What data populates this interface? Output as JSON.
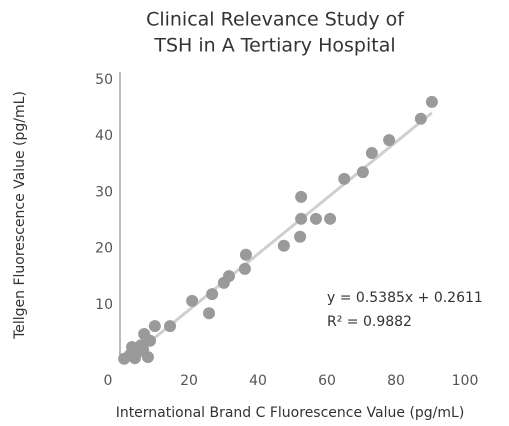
{
  "chart_data": {
    "type": "scatter",
    "title": [
      "Clinical Relevance Study of",
      "TSH in A Tertiary Hospital"
    ],
    "xlabel": "International Brand C Fluorescence Value (pg/mL)",
    "ylabel": "Tellgen Fluorescence Value (pg/mL)",
    "annotations": [
      "y = 0.5385x + 0.2611",
      "R² = 0.9882"
    ],
    "color": "#9a9a9a",
    "trendline_color": "#cfcfcf",
    "x": [
      90.4,
      87.2,
      78,
      73,
      70.4,
      65,
      52.5,
      60.9,
      56.8,
      52.5,
      52.2,
      47.5,
      36.5,
      36.2,
      31.6,
      30.1,
      26.7,
      25.8,
      20.9,
      14.5,
      10.1,
      8.7,
      7,
      6.1,
      3.5,
      5.2,
      2.9,
      1.2,
      8.1,
      4.3,
      6.7
    ],
    "values": [
      46.1,
      43.1,
      39.3,
      37,
      33.6,
      32.4,
      29.2,
      25.3,
      25.3,
      25.3,
      22.1,
      20.5,
      18.9,
      16.4,
      15.1,
      13.9,
      11.9,
      8.5,
      10.7,
      6.2,
      6.2,
      3.6,
      4.8,
      2.8,
      2.5,
      1.6,
      1.1,
      0.4,
      0.7,
      0.5,
      2
    ],
    "xlim": [
      0,
      100
    ],
    "xticks": [
      0,
      20,
      40,
      60,
      80,
      100
    ],
    "ylim": [
      0,
      50
    ],
    "yticks": [
      0,
      10,
      20,
      30,
      40,
      50
    ]
  }
}
